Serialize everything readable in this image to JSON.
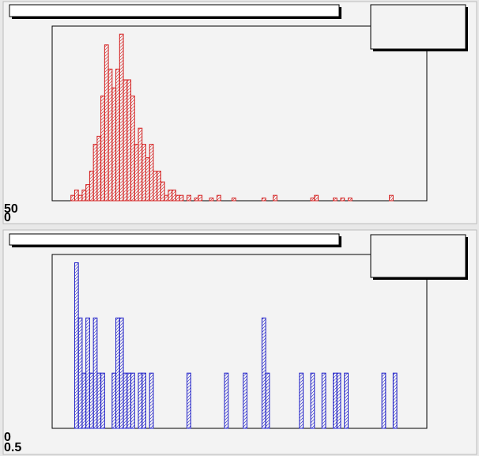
{
  "chart_data": [
    {
      "type": "histogram",
      "color": "#d42020",
      "bins": [
        0,
        1,
        2,
        3,
        4,
        5,
        6,
        7,
        8,
        9,
        10,
        11,
        12,
        13,
        14,
        15,
        16,
        17,
        18,
        19,
        20,
        21,
        22,
        23,
        24,
        25,
        26,
        27,
        28,
        29,
        30,
        31,
        32,
        33,
        34,
        35,
        36,
        37,
        38,
        39,
        40,
        41,
        42,
        43,
        44,
        45,
        46,
        47,
        48,
        49,
        50,
        51,
        52,
        53,
        54,
        55,
        56,
        57,
        58,
        59,
        60,
        61,
        62,
        63,
        64,
        65,
        66,
        67,
        68,
        69,
        70,
        71,
        72,
        73,
        74,
        75,
        76,
        77,
        78,
        79,
        80,
        81,
        82,
        83,
        84,
        85,
        86,
        87,
        88,
        89,
        90,
        91,
        92,
        93,
        94,
        95,
        96,
        97,
        98,
        99,
        100
      ],
      "values": [
        0,
        0,
        0,
        0,
        0,
        2,
        4,
        2,
        4,
        6,
        11,
        21,
        24,
        39,
        58,
        49,
        42,
        49,
        62,
        45,
        45,
        39,
        21,
        27,
        21,
        16,
        21,
        11,
        11,
        7,
        2,
        4,
        4,
        2,
        2,
        0,
        2,
        0,
        1,
        2,
        0,
        0,
        1,
        0,
        2,
        0,
        0,
        0,
        1,
        0,
        0,
        0,
        0,
        0,
        0,
        0,
        1,
        0,
        0,
        2,
        0,
        0,
        0,
        0,
        0,
        0,
        0,
        0,
        0,
        1,
        2,
        0,
        0,
        0,
        0,
        1,
        0,
        1,
        0,
        1,
        0,
        0,
        0,
        0,
        0,
        0,
        0,
        0,
        0,
        0,
        2,
        0,
        0,
        0,
        0,
        0,
        0,
        0,
        0,
        0
      ],
      "xlim": [
        0,
        100
      ],
      "ylim": [
        0,
        65
      ],
      "ytick_labels": [
        "50",
        "0"
      ]
    },
    {
      "type": "histogram",
      "color": "#2020c8",
      "bins": [
        0,
        1,
        2,
        3,
        4,
        5,
        6,
        7,
        8,
        9,
        10,
        11,
        12,
        13,
        14,
        15,
        16,
        17,
        18,
        19,
        20,
        21,
        22,
        23,
        24,
        25,
        26,
        27,
        28,
        29,
        30,
        31,
        32,
        33,
        34,
        35,
        36,
        37,
        38,
        39,
        40,
        41,
        42,
        43,
        44,
        45,
        46,
        47,
        48,
        49,
        50,
        51,
        52,
        53,
        54,
        55,
        56,
        57,
        58,
        59,
        60,
        61,
        62,
        63,
        64,
        65,
        66,
        67,
        68,
        69,
        70,
        71,
        72,
        73,
        74,
        75,
        76,
        77,
        78,
        79,
        80,
        81,
        82,
        83,
        84,
        85,
        86,
        87,
        88,
        89,
        90,
        91,
        92,
        93,
        94,
        95,
        96,
        97,
        98,
        99,
        100
      ],
      "values": [
        0,
        0,
        0,
        0,
        0,
        0,
        6,
        4,
        2,
        4,
        2,
        4,
        2,
        2,
        0,
        0,
        2,
        4,
        4,
        2,
        2,
        2,
        0,
        2,
        2,
        0,
        2,
        0,
        0,
        0,
        0,
        0,
        0,
        0,
        0,
        0,
        2,
        0,
        0,
        0,
        0,
        0,
        0,
        0,
        0,
        0,
        2,
        0,
        0,
        0,
        0,
        2,
        0,
        0,
        0,
        0,
        4,
        2,
        0,
        0,
        0,
        0,
        0,
        0,
        0,
        0,
        2,
        0,
        0,
        2,
        0,
        0,
        2,
        0,
        0,
        2,
        2,
        0,
        2,
        0,
        0,
        0,
        0,
        0,
        0,
        0,
        0,
        0,
        2,
        0,
        0,
        2,
        0,
        0,
        0,
        0,
        0,
        0,
        0,
        0
      ],
      "xlim": [
        0,
        100
      ],
      "ylim": [
        0,
        6.3
      ],
      "ytick_labels": [
        "0",
        "0.5"
      ]
    }
  ]
}
